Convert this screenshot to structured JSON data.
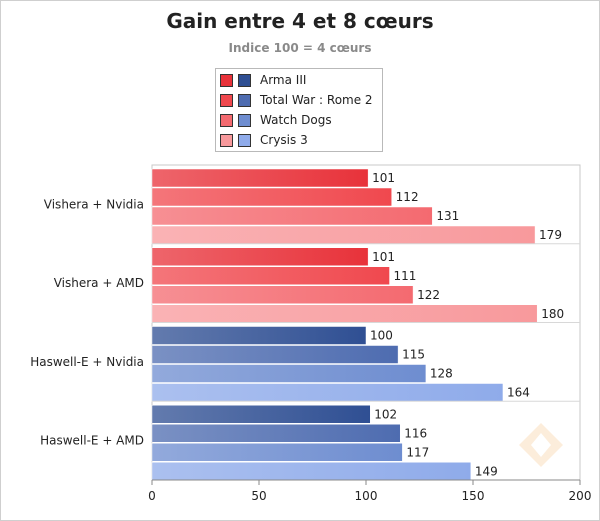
{
  "chart_data": {
    "type": "bar",
    "orientation": "horizontal",
    "title": "Gain entre 4 et 8 cœurs",
    "subtitle": "Indice 100 = 4 cœurs",
    "categories": [
      "Vishera + Nvidia",
      "Vishera + AMD",
      "Haswell-E + Nvidia",
      "Haswell-E + AMD"
    ],
    "series": [
      {
        "name": "Arma III",
        "values": [
          101,
          101,
          100,
          102
        ]
      },
      {
        "name": "Total War : Rome 2",
        "values": [
          112,
          111,
          115,
          116
        ]
      },
      {
        "name": "Watch Dogs",
        "values": [
          131,
          122,
          128,
          117
        ]
      },
      {
        "name": "Crysis 3",
        "values": [
          179,
          180,
          164,
          149
        ]
      }
    ],
    "group_colors": {
      "red": [
        "#e8323a",
        "#f0484e",
        "#f46a70",
        "#f8999c"
      ],
      "blue": [
        "#2f4f93",
        "#4e6cb0",
        "#6e8dd0",
        "#8fabea"
      ]
    },
    "group_palette": [
      "red",
      "red",
      "blue",
      "blue"
    ],
    "xlim": [
      0,
      200
    ],
    "xticks": [
      0,
      50,
      100,
      150,
      200
    ],
    "data_labels": true,
    "legend_position": "top-center",
    "grid": false
  }
}
